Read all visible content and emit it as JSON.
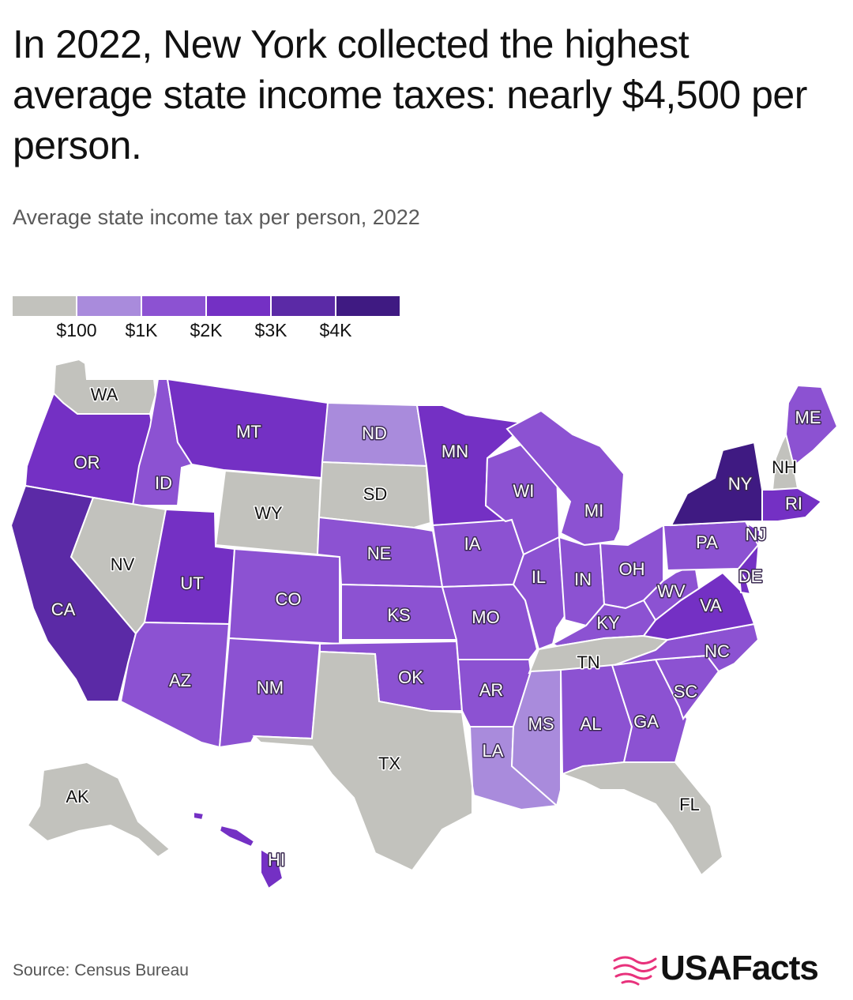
{
  "title": "In 2022, New York collected the highest average state income taxes: nearly $4,500 per person.",
  "subtitle": "Average state income tax per person, 2022",
  "legend": {
    "ticks": [
      "$100",
      "$1K",
      "$2K",
      "$3K",
      "$4K"
    ],
    "colors": [
      "#c2c2bd",
      "#a98bdc",
      "#8c52d2",
      "#7430c4",
      "#5b2aa6",
      "#3f1a82"
    ]
  },
  "source": "Source: Census Bureau",
  "brand": {
    "name": "USAFacts",
    "accent": "#e8327c"
  },
  "map_data": {
    "states": [
      {
        "code": "WA",
        "bin": 0
      },
      {
        "code": "OR",
        "bin": 3
      },
      {
        "code": "CA",
        "bin": 4
      },
      {
        "code": "ID",
        "bin": 2
      },
      {
        "code": "NV",
        "bin": 0
      },
      {
        "code": "MT",
        "bin": 3
      },
      {
        "code": "WY",
        "bin": 0
      },
      {
        "code": "UT",
        "bin": 3
      },
      {
        "code": "AZ",
        "bin": 2
      },
      {
        "code": "CO",
        "bin": 2
      },
      {
        "code": "NM",
        "bin": 2
      },
      {
        "code": "ND",
        "bin": 1
      },
      {
        "code": "SD",
        "bin": 0
      },
      {
        "code": "NE",
        "bin": 2
      },
      {
        "code": "KS",
        "bin": 2
      },
      {
        "code": "OK",
        "bin": 2
      },
      {
        "code": "TX",
        "bin": 0
      },
      {
        "code": "MN",
        "bin": 3
      },
      {
        "code": "IA",
        "bin": 2
      },
      {
        "code": "MO",
        "bin": 2
      },
      {
        "code": "AR",
        "bin": 2
      },
      {
        "code": "LA",
        "bin": 1
      },
      {
        "code": "WI",
        "bin": 2
      },
      {
        "code": "IL",
        "bin": 2
      },
      {
        "code": "MI",
        "bin": 2
      },
      {
        "code": "IN",
        "bin": 2
      },
      {
        "code": "OH",
        "bin": 2
      },
      {
        "code": "KY",
        "bin": 2
      },
      {
        "code": "TN",
        "bin": 0
      },
      {
        "code": "MS",
        "bin": 1
      },
      {
        "code": "AL",
        "bin": 2
      },
      {
        "code": "GA",
        "bin": 2
      },
      {
        "code": "FL",
        "bin": 0
      },
      {
        "code": "SC",
        "bin": 2
      },
      {
        "code": "NC",
        "bin": 2
      },
      {
        "code": "VA",
        "bin": 3
      },
      {
        "code": "WV",
        "bin": 2
      },
      {
        "code": "PA",
        "bin": 2
      },
      {
        "code": "NY",
        "bin": 5
      },
      {
        "code": "NJ",
        "bin": 3
      },
      {
        "code": "DE",
        "bin": 3
      },
      {
        "code": "ME",
        "bin": 2
      },
      {
        "code": "NH",
        "bin": 0
      },
      {
        "code": "RI",
        "bin": 3
      },
      {
        "code": "AK",
        "bin": 0
      },
      {
        "code": "HI",
        "bin": 3
      }
    ]
  }
}
